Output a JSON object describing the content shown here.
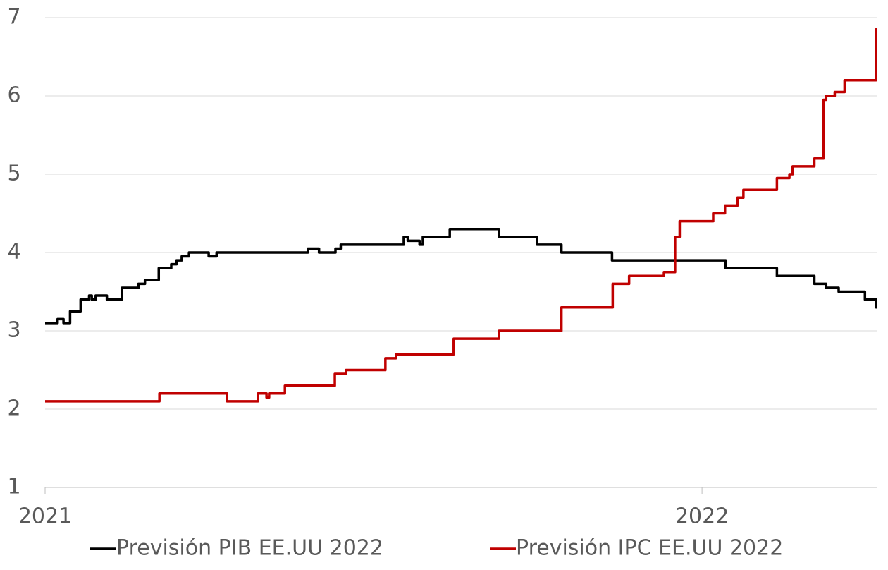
{
  "chart_data": {
    "type": "line",
    "xlim": [
      2021,
      2022.267
    ],
    "xticks": [
      2021,
      2022
    ],
    "ylim": [
      1,
      7
    ],
    "yticks": [
      1,
      2,
      3,
      4,
      5,
      6,
      7
    ],
    "grid": true,
    "legend": "bottom",
    "series": [
      {
        "name": "Previsión PIB EE.UU 2022",
        "color": "#000000",
        "x": [
          2021.0,
          2021.019,
          2021.028,
          2021.038,
          2021.054,
          2021.067,
          2021.071,
          2021.077,
          2021.094,
          2021.117,
          2021.142,
          2021.152,
          2021.173,
          2021.192,
          2021.2,
          2021.208,
          2021.219,
          2021.249,
          2021.261,
          2021.4,
          2021.417,
          2021.442,
          2021.45,
          2021.546,
          2021.552,
          2021.57,
          2021.575,
          2021.616,
          2021.691,
          2021.749,
          2021.786,
          2021.863,
          2022.036,
          2022.114,
          2022.171,
          2022.189,
          2022.208,
          2022.248,
          2022.265,
          2022.267
        ],
        "values": [
          3.1,
          3.15,
          3.1,
          3.25,
          3.4,
          3.45,
          3.4,
          3.45,
          3.4,
          3.55,
          3.6,
          3.65,
          3.8,
          3.85,
          3.9,
          3.95,
          4.0,
          3.95,
          4.0,
          4.05,
          4.0,
          4.05,
          4.1,
          4.2,
          4.15,
          4.1,
          4.2,
          4.3,
          4.2,
          4.1,
          4.0,
          3.9,
          3.8,
          3.7,
          3.6,
          3.55,
          3.5,
          3.4,
          3.3,
          3.3
        ]
      },
      {
        "name": "Previsión IPC EE.UU 2022",
        "color": "#c00000",
        "x": [
          2021.0,
          2021.174,
          2021.277,
          2021.324,
          2021.337,
          2021.341,
          2021.365,
          2021.441,
          2021.458,
          2021.518,
          2021.534,
          2021.622,
          2021.691,
          2021.786,
          2021.864,
          2021.889,
          2021.942,
          2021.959,
          2021.966,
          2022.017,
          2022.035,
          2022.054,
          2022.063,
          2022.114,
          2022.133,
          2022.138,
          2022.171,
          2022.185,
          2022.189,
          2022.202,
          2022.217,
          2022.265,
          2022.267
        ],
        "values": [
          2.1,
          2.2,
          2.1,
          2.2,
          2.15,
          2.2,
          2.3,
          2.45,
          2.5,
          2.65,
          2.7,
          2.9,
          3.0,
          3.3,
          3.6,
          3.7,
          3.75,
          4.2,
          4.4,
          4.5,
          4.6,
          4.7,
          4.8,
          4.95,
          5.0,
          5.1,
          5.2,
          5.95,
          6.0,
          6.05,
          6.2,
          6.85,
          6.85
        ]
      }
    ]
  }
}
